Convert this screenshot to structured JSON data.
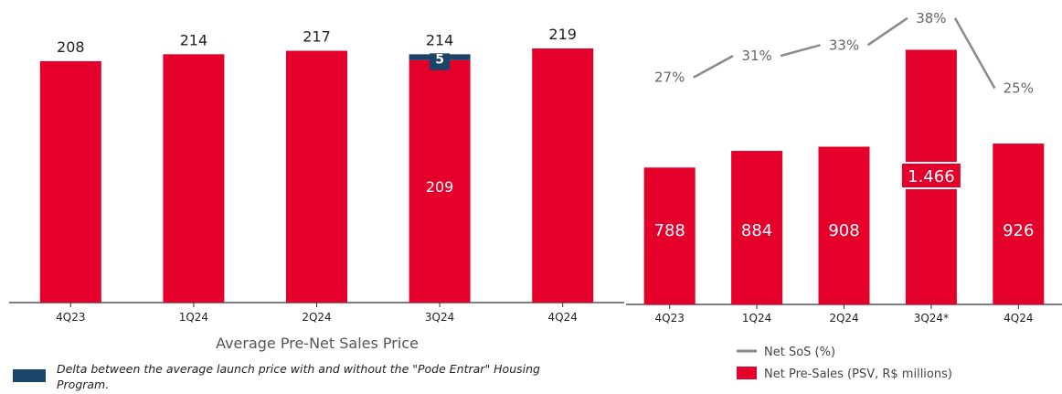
{
  "chart_data": [
    {
      "type": "bar",
      "title": "Average Pre-Net Sales Price",
      "categories": [
        "4Q23",
        "1Q24",
        "2Q24",
        "3Q24",
        "4Q24"
      ],
      "values": [
        208,
        214,
        217,
        214,
        219
      ],
      "series": [
        {
          "name": "",
          "values": [
            208,
            214,
            217,
            209,
            219
          ]
        },
        {
          "name": "Delta between the average launch price with and without the \"Pode Entrar\" Housing Program.",
          "values": [
            0,
            0,
            0,
            5,
            0
          ]
        }
      ],
      "inner_labels": [
        "",
        "",
        "",
        "209",
        ""
      ],
      "delta_labels": [
        "",
        "",
        "",
        "5",
        ""
      ],
      "ylim": [
        0,
        245
      ],
      "colors": {
        "bar": "#e4002b",
        "delta": "#1b4468"
      },
      "legend": {
        "swatch_color": "#1b4468",
        "text": "Delta between the average launch price with and without the \"Pode Entrar\" Housing Program."
      }
    },
    {
      "type": "bar",
      "categories": [
        "4Q23",
        "1Q24",
        "2Q24",
        "3Q24*",
        "4Q24"
      ],
      "series": [
        {
          "name": "Net Pre-Sales (PSV, R$ millions)",
          "values": [
            788,
            884,
            908,
            1466,
            926
          ]
        },
        {
          "name": "Net SoS (%)",
          "values": [
            27,
            31,
            33,
            38,
            25
          ]
        }
      ],
      "bar_labels": [
        "788",
        "884",
        "908",
        "1.466",
        "926"
      ],
      "line_labels": [
        "27%",
        "31%",
        "33%",
        "38%",
        "25%"
      ],
      "ylim": [
        0,
        1500
      ],
      "colors": {
        "bar": "#e4002b",
        "line": "#8a8a8a"
      },
      "legend": [
        {
          "kind": "line",
          "color": "#8a8a8a",
          "text": "Net SoS (%)"
        },
        {
          "kind": "box",
          "color": "#e4002b",
          "text": "Net Pre-Sales (PSV, R$ millions)"
        }
      ]
    }
  ]
}
